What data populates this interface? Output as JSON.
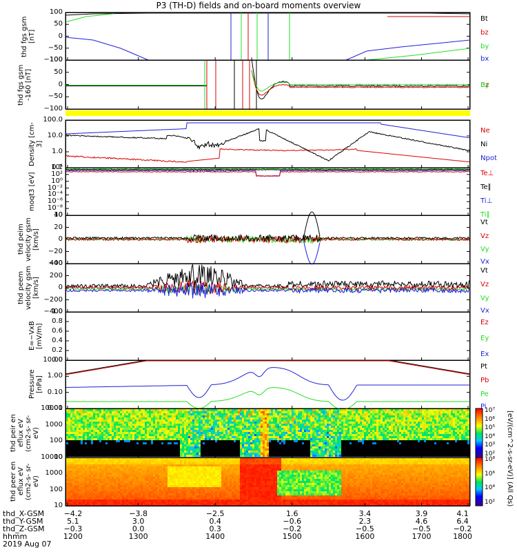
{
  "title": "P3 (TH-D) fields and on-board moments overview",
  "colors": {
    "black": "#000000",
    "red": "#d80000",
    "green": "#22dd22",
    "blue": "#1e1ed8",
    "yellow": "#ffff00"
  },
  "chart_data": [
    {
      "type": "line",
      "ylabel": "thd\nfgs\ngsm\n[nT]",
      "ylim": [
        -100,
        100
      ],
      "yticks": [
        "100",
        "50",
        "0",
        "−50",
        "−100"
      ],
      "series": [
        {
          "name": "Bt"
        },
        {
          "name": "bz"
        },
        {
          "name": "by"
        },
        {
          "name": "bx"
        }
      ]
    },
    {
      "type": "line",
      "ylabel": "thd\nfgs\ngsm\n-160\n[nT]",
      "ylim": [
        -125,
        125
      ],
      "yticks": [
        "100",
        "50",
        "0",
        "−50",
        "−100"
      ],
      "series": [
        {
          "name": "Bz"
        },
        {
          "name": "By"
        }
      ]
    },
    {
      "type": "line",
      "ylabel": "Density\n[cm-3]",
      "scale": "log",
      "yticks": [
        "100.0",
        "10.0",
        "1.0",
        "0.1"
      ],
      "series": [
        {
          "name": "Ne"
        },
        {
          "name": "Ni"
        },
        {
          "name": "Npot"
        }
      ]
    },
    {
      "type": "line",
      "ylabel": "moqt3\n[eV]",
      "scale": "log",
      "yticks": [
        "10⁴",
        "10²",
        "10⁰",
        "10⁻²",
        "10⁻⁴",
        "10⁻⁶",
        "10⁻⁸",
        "10"
      ],
      "series": [
        {
          "name": "Te⊥"
        },
        {
          "name": "Te∥"
        },
        {
          "name": "Ti⊥"
        },
        {
          "name": "Ti∥"
        }
      ]
    },
    {
      "type": "line",
      "ylabel": "thd\npeim\nvelocity\ngsm\n[km/s]",
      "ylim": [
        -40,
        40
      ],
      "yticks": [
        "40",
        "20",
        "0",
        "−20",
        "−40"
      ],
      "series": [
        {
          "name": "Vt"
        },
        {
          "name": "Vz"
        },
        {
          "name": "Vy"
        },
        {
          "name": "Vx"
        }
      ]
    },
    {
      "type": "line",
      "ylabel": "thd\npeem\nvelocity\ngsm\n[km/s]",
      "ylim": [
        -400,
        400
      ],
      "yticks": [
        "400",
        "200",
        "0",
        "−200",
        "−400"
      ],
      "series": [
        {
          "name": "Vt"
        },
        {
          "name": "Vz"
        },
        {
          "name": "Vy"
        },
        {
          "name": "Vx"
        }
      ]
    },
    {
      "type": "line",
      "ylabel": "E=−VxB\n[mV/m]",
      "ylim": [
        0,
        1
      ],
      "yticks": [
        "1.0",
        "0.8",
        "0.6",
        "0.4",
        "0.2",
        "0.0"
      ],
      "series": [
        {
          "name": "Ez"
        },
        {
          "name": "Ey"
        },
        {
          "name": "Ex"
        }
      ]
    },
    {
      "type": "line",
      "ylabel": "Pressure\n[nPa]",
      "scale": "log",
      "yticks": [
        "10.00",
        "1.00",
        "0.10",
        "0.01"
      ],
      "series": [
        {
          "name": "Pt"
        },
        {
          "name": "Pb"
        },
        {
          "name": "Pe"
        },
        {
          "name": "Pi"
        }
      ]
    },
    {
      "type": "heatmap",
      "ylabel": "thd\npeir\nen\neflux\neV\n(cm2-s-\nsr-eV)",
      "yticks": [
        "10000",
        "1000",
        "100",
        "10"
      ],
      "colorbar": [
        "10⁷",
        "10⁶",
        "10⁵",
        "10⁴",
        "10³",
        "10²"
      ],
      "colorbar_label": "[eV/(cm^2-s-sr-eV)] (All Qs)"
    },
    {
      "type": "heatmap",
      "ylabel": "thd\npeer\nen\neflux\neV\n(cm2-s-\nsr-eV)",
      "yticks": [
        "10000",
        "1000",
        "100",
        "10"
      ],
      "colorbar": [
        "10⁸",
        "10⁶",
        "10⁴",
        "10²"
      ],
      "colorbar_label": "[eV/(cm^2-s-sr-eV)]"
    }
  ],
  "xaxis": {
    "rows": [
      {
        "label": "thd_X-GSM",
        "values": [
          "−4.2",
          "−3.8",
          "−2.5",
          "1.6",
          "3.4",
          "3.9",
          "4.1"
        ]
      },
      {
        "label": "thd_Y-GSM",
        "values": [
          "5.1",
          "3.0",
          "0.4",
          "−0.6",
          "2.3",
          "4.6",
          "6.4"
        ]
      },
      {
        "label": "thd_Z-GSM",
        "values": [
          "−0.3",
          "0.0",
          "0.3",
          "−0.2",
          "−0.5",
          "−0.5",
          "−0.2"
        ]
      },
      {
        "label": "hhmm",
        "values": [
          "1200",
          "1300",
          "1400",
          "1500",
          "1600",
          "1700",
          "1800"
        ]
      }
    ],
    "date": "2019 Aug 07"
  }
}
